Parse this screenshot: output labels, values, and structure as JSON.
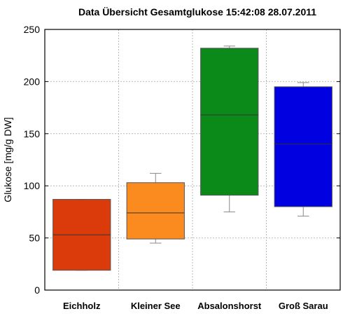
{
  "chart_data": {
    "type": "box",
    "title": "Data Übersicht Gesamtglukose 15:42:08   28.07.2011",
    "xlabel": "",
    "ylabel": "Glukose [mg/g DW]",
    "ylim": [
      0,
      250
    ],
    "yticks": [
      0,
      50,
      100,
      150,
      200,
      250
    ],
    "grid": true,
    "categories": [
      "Eichholz",
      "Kleiner See",
      "Absalonshorst",
      "Groß Sarau"
    ],
    "boxes": [
      {
        "category": "Eichholz",
        "whisker_low": 19,
        "q1": 19,
        "median": 53,
        "q3": 87,
        "whisker_high": 87,
        "color": "#db3b0a"
      },
      {
        "category": "Kleiner See",
        "whisker_low": 45,
        "q1": 49,
        "median": 74,
        "q3": 103,
        "whisker_high": 112,
        "color": "#fb8b1e"
      },
      {
        "category": "Absalonshorst",
        "whisker_low": 75,
        "q1": 91,
        "median": 168,
        "q3": 232,
        "whisker_high": 234,
        "color": "#0b8a1a"
      },
      {
        "category": "Groß Sarau",
        "whisker_low": 71,
        "q1": 80,
        "median": 140,
        "q3": 195,
        "whisker_high": 199,
        "color": "#0000e0"
      }
    ]
  }
}
